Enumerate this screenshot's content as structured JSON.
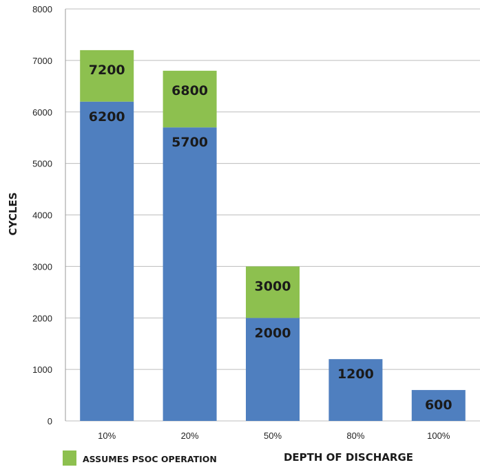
{
  "chart_data": {
    "type": "bar",
    "stacked": true,
    "categories": [
      "10%",
      "20%",
      "50%",
      "80%",
      "100%"
    ],
    "series": [
      {
        "values": [
          6200,
          5700,
          2000,
          1200,
          600
        ],
        "color": "#4f7fbf"
      },
      {
        "name": "ASSUMES PSOC OPERATION",
        "values": [
          1000,
          1100,
          1000,
          0,
          0
        ],
        "totals": [
          7200,
          6800,
          3000,
          null,
          null
        ],
        "color": "#8dc04f"
      }
    ],
    "bar_labels": [
      {
        "base": "6200",
        "top": "7200"
      },
      {
        "base": "5700",
        "top": "6800"
      },
      {
        "base": "2000",
        "top": "3000"
      },
      {
        "base": "1200",
        "top": ""
      },
      {
        "base": "600",
        "top": ""
      }
    ],
    "xlabel": "DEPTH OF DISCHARGE",
    "ylabel": "CYCLES",
    "ylim": [
      0,
      8000
    ],
    "yticks": [
      "0",
      "1000",
      "2000",
      "3000",
      "4000",
      "5000",
      "6000",
      "7000",
      "8000"
    ],
    "grid": true,
    "legend": {
      "position": "bottom-left",
      "label": "ASSUMES PSOC OPERATION"
    }
  }
}
